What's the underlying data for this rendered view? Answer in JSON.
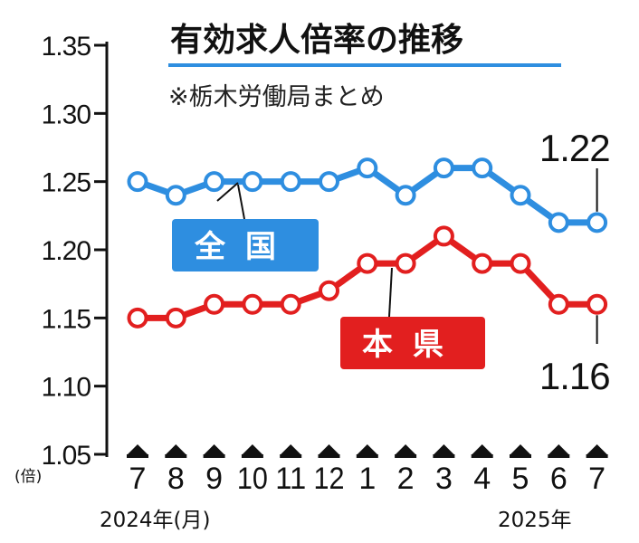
{
  "chart_data": {
    "type": "line",
    "title": "有効求人倍率の推移",
    "subtitle": "※栃木労働局まとめ",
    "y_unit": "(倍)",
    "categories": [
      "7",
      "8",
      "9",
      "10",
      "11",
      "12",
      "1",
      "2",
      "3",
      "4",
      "5",
      "6",
      "7"
    ],
    "year_start": "2024年(月)",
    "year_end": "2025年",
    "ylim": [
      1.05,
      1.35
    ],
    "yticks": [
      "1.35",
      "1.30",
      "1.25",
      "1.20",
      "1.15",
      "1.10",
      "1.05"
    ],
    "series": [
      {
        "name": "全国",
        "color": "#2e8ee0",
        "values": [
          1.25,
          1.24,
          1.25,
          1.25,
          1.25,
          1.25,
          1.26,
          1.24,
          1.26,
          1.26,
          1.24,
          1.22,
          1.22
        ],
        "end_label": "1.22"
      },
      {
        "name": "本県",
        "color": "#e21f1f",
        "values": [
          1.15,
          1.15,
          1.16,
          1.16,
          1.16,
          1.17,
          1.19,
          1.19,
          1.21,
          1.19,
          1.19,
          1.16,
          1.16
        ],
        "end_label": "1.16"
      }
    ]
  }
}
